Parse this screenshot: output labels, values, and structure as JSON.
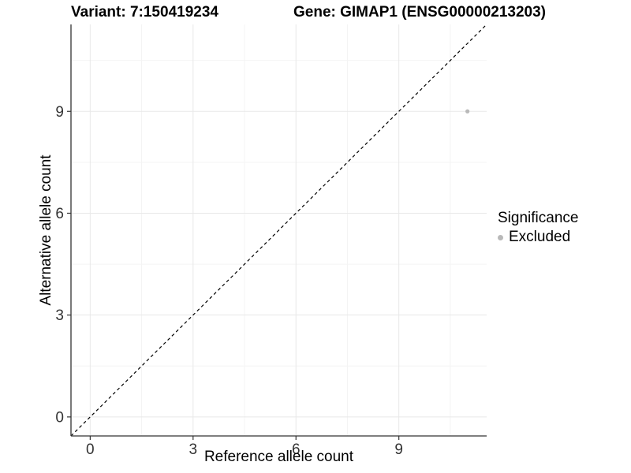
{
  "titles": {
    "variant": "Variant: 7:150419234",
    "gene": "Gene: GIMAP1 (ENSG00000213203)"
  },
  "chart_data": {
    "type": "scatter",
    "title_left": "Variant: 7:150419234",
    "title_right": "Gene: GIMAP1 (ENSG00000213203)",
    "xlabel": "Reference allele count",
    "ylabel": "Alternative allele count",
    "xlim": [
      -0.56,
      11.56
    ],
    "ylim": [
      -0.56,
      11.56
    ],
    "major_ticks": [
      0,
      3,
      6,
      9
    ],
    "minor_ticks": [
      1.5,
      4.5,
      7.5,
      10.5
    ],
    "grid": true,
    "legend": {
      "title": "Significance",
      "position": "right",
      "items": [
        {
          "label": "Excluded",
          "color": "#b9b9b9"
        }
      ]
    },
    "series": [
      {
        "name": "Excluded",
        "color": "#b9b9b9",
        "points": [
          [
            11,
            9
          ]
        ]
      }
    ],
    "reference_line": {
      "slope": 1,
      "intercept": 0,
      "style": "dashed",
      "color": "#000000"
    },
    "colors": {
      "background": "#ffffff",
      "major_grid": "#e8e8e8",
      "minor_grid": "#f4f4f4",
      "axis_line": "#333333",
      "tick_label": "#333333"
    }
  }
}
